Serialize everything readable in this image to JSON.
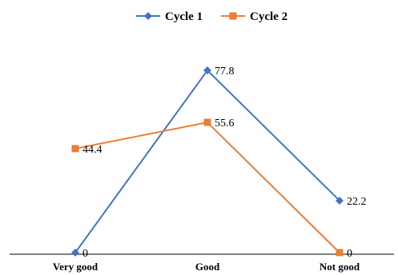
{
  "chart_data": {
    "type": "line",
    "categories": [
      "Very good",
      "Good",
      "Not good"
    ],
    "series": [
      {
        "name": "Cycle 1",
        "values": [
          0,
          77.8,
          22.2
        ],
        "color": "#4472C4",
        "marker": "diamond"
      },
      {
        "name": "Cycle 2",
        "values": [
          44.4,
          55.6,
          0
        ],
        "color": "#ED7D31",
        "marker": "square"
      }
    ],
    "ylim": [
      0,
      100
    ],
    "grid": false,
    "legend_position": "top-center"
  }
}
